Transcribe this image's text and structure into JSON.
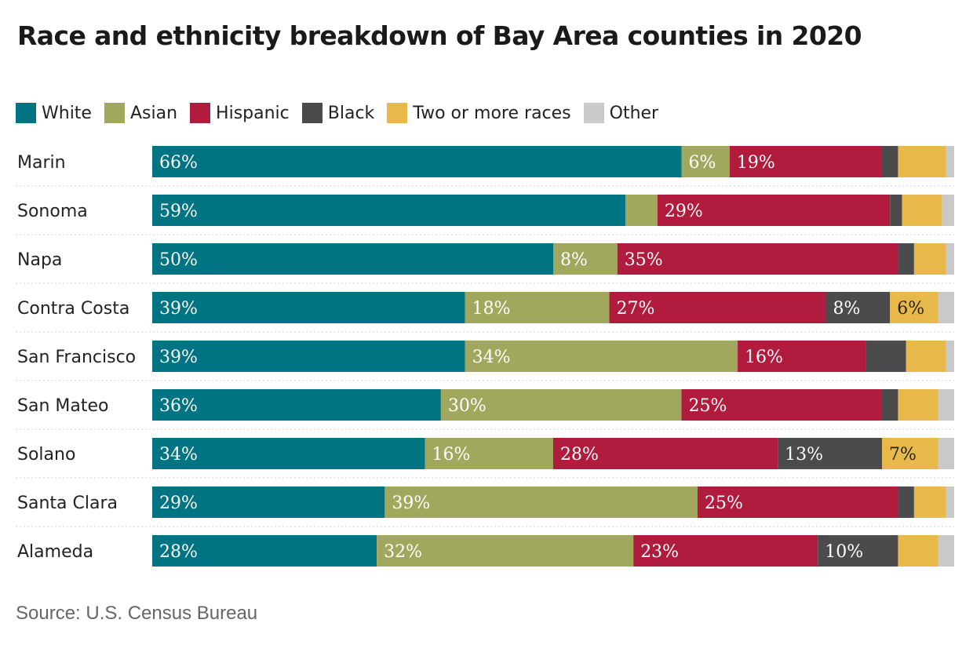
{
  "title": "Race and ethnicity breakdown of Bay Area counties in 2020",
  "source": "Source: U.S. Census Bureau",
  "legend": [
    {
      "label": "White",
      "color": "#007482"
    },
    {
      "label": "Asian",
      "color": "#a2a75e"
    },
    {
      "label": "Hispanic",
      "color": "#b11c3e"
    },
    {
      "label": "Black",
      "color": "#4b4b4e"
    },
    {
      "label": "Two or more races",
      "color": "#e8b84a"
    },
    {
      "label": "Other",
      "color": "#c9c9ca"
    }
  ],
  "chart_data": {
    "type": "bar",
    "orientation": "horizontal",
    "stacked": true,
    "normalized": true,
    "title": "Race and ethnicity breakdown of Bay Area counties in 2020",
    "xlabel": "",
    "ylabel": "",
    "xlim": [
      0,
      100
    ],
    "grid": false,
    "legend_position": "top-left",
    "categories": [
      "Marin",
      "Sonoma",
      "Napa",
      "Contra Costa",
      "San Francisco",
      "San Mateo",
      "Solano",
      "Santa Clara",
      "Alameda"
    ],
    "series": [
      {
        "name": "White",
        "color": "#007482",
        "values": [
          66,
          59,
          50,
          39,
          39,
          36,
          34,
          29,
          28
        ],
        "labels": [
          "66%",
          "59%",
          "50%",
          "39%",
          "39%",
          "36%",
          "34%",
          "29%",
          "28%"
        ]
      },
      {
        "name": "Asian",
        "color": "#a2a75e",
        "values": [
          6,
          4,
          8,
          18,
          34,
          30,
          16,
          39,
          32
        ],
        "labels": [
          "6%",
          "",
          "8%",
          "18%",
          "34%",
          "30%",
          "16%",
          "39%",
          "32%"
        ]
      },
      {
        "name": "Hispanic",
        "color": "#b11c3e",
        "values": [
          19,
          29,
          35,
          27,
          16,
          25,
          28,
          25,
          23
        ],
        "labels": [
          "19%",
          "29%",
          "35%",
          "27%",
          "16%",
          "25%",
          "28%",
          "25%",
          "23%"
        ]
      },
      {
        "name": "Black",
        "color": "#4b4b4e",
        "values": [
          2,
          1.5,
          2,
          8,
          5,
          2,
          13,
          2,
          10
        ],
        "labels": [
          "",
          "",
          "",
          "8%",
          "",
          "",
          "13%",
          "",
          "10%"
        ]
      },
      {
        "name": "Two or more races",
        "color": "#e8b84a",
        "values": [
          6,
          5,
          4,
          6,
          5,
          5,
          7,
          4,
          5
        ],
        "labels": [
          "",
          "",
          "",
          "6%",
          "",
          "",
          "7%",
          "",
          ""
        ]
      },
      {
        "name": "Other",
        "color": "#c9c9ca",
        "values": [
          1,
          1.5,
          1,
          2,
          1,
          2,
          2,
          1,
          2
        ],
        "labels": [
          "",
          "",
          "",
          "",
          "",
          "",
          "",
          "",
          ""
        ]
      }
    ]
  }
}
